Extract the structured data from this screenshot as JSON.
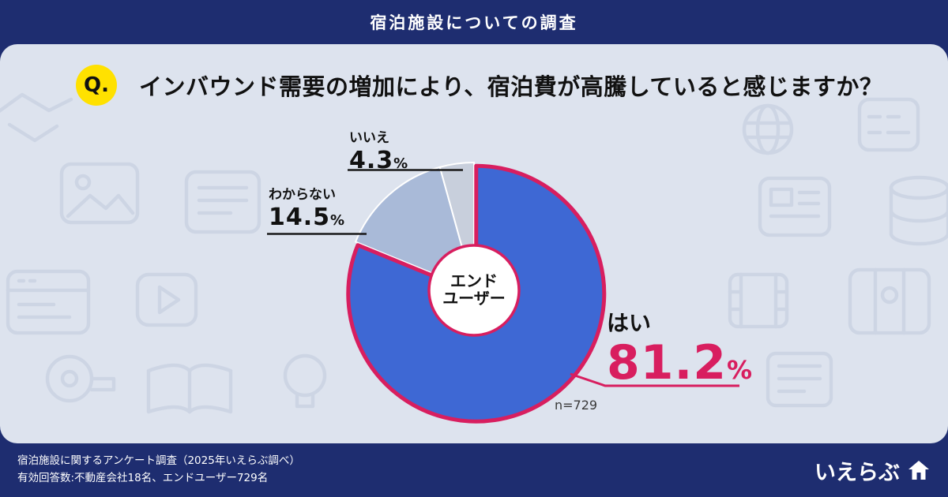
{
  "header": {
    "title": "宿泊施設についての調査"
  },
  "question": {
    "badge": "Q.",
    "text": "インバウンド需要の増加により、宿泊費が高騰していると感じますか？"
  },
  "chart_data": {
    "type": "pie",
    "title": "インバウンド需要の増加により、宿泊費が高騰していると感じますか？",
    "respondent_group": "エンドユーザー",
    "center_lines": [
      "エンド",
      "ユーザー"
    ],
    "sample_label": "n=729",
    "unit": "%",
    "start_angle": "top",
    "direction": "clockwise",
    "accent_color": "#d81e5f",
    "slices": [
      {
        "label": "はい",
        "value": 81.2,
        "color": "#3e68d4",
        "highlight": true
      },
      {
        "label": "わからない",
        "value": 14.5,
        "color": "#a9bad8",
        "highlight": false
      },
      {
        "label": "いいえ",
        "value": 4.3,
        "color": "#c8cfdc",
        "highlight": false
      }
    ]
  },
  "footer": {
    "line1": "宿泊施設に関するアンケート調査（2025年いえらぶ調べ）",
    "line2": "有効回答数:不動産会社18名、エンドユーザー729名",
    "logo": "いえらぶ"
  },
  "colors": {
    "navy": "#1e2d70",
    "panel_bg": "#dde3ee",
    "accent": "#d81e5f",
    "badge_yellow": "#ffe100"
  }
}
